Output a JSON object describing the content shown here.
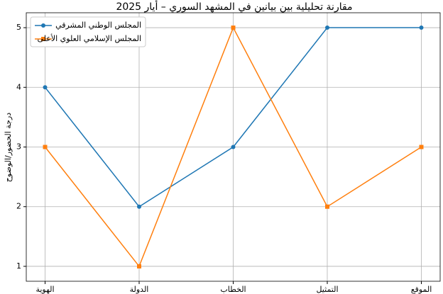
{
  "chart_data": {
    "type": "line",
    "title": "مقارنة تحليلية بين بيانين في المشهد السوري – أيار 2025",
    "y_label": "درجة الحضور/الوضوح",
    "categories": [
      "الهوية",
      "الدولة",
      "الخطاب",
      "التمثيل",
      "الموقع"
    ],
    "series": [
      {
        "name": "المجلس الوطني المشرقي",
        "color": "#1f77b4",
        "marker": "circle",
        "values": [
          4,
          2,
          3,
          5,
          5
        ]
      },
      {
        "name": "المجلس الإسلامي العلوي الأعلى",
        "color": "#ff7f0e",
        "marker": "square",
        "values": [
          3,
          1,
          5,
          2,
          3
        ]
      }
    ],
    "ylim": [
      0.75,
      5.25
    ],
    "yticks": [
      1,
      2,
      3,
      4,
      5
    ],
    "grid": true,
    "legend": "upper-left"
  }
}
